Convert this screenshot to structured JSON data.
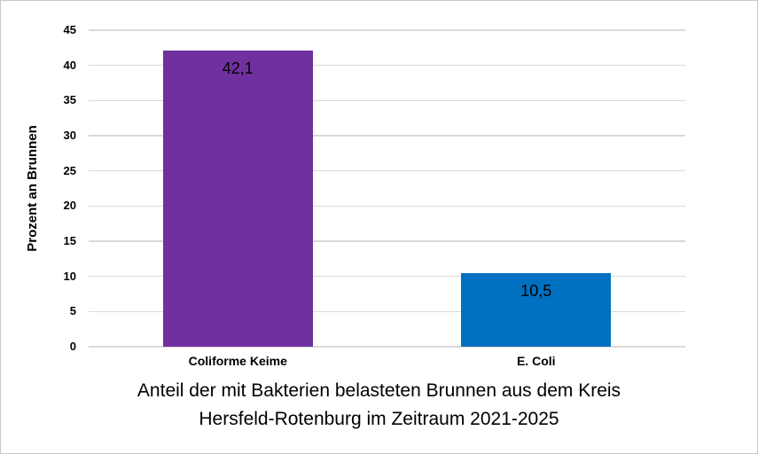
{
  "chart_data": {
    "type": "bar",
    "title_lines": [
      "Anteil der mit Bakterien belasteten Brunnen aus dem Kreis",
      "Hersfeld-Rotenburg im Zeitraum 2021-2025"
    ],
    "ylabel": "Prozent an Brunnen",
    "xlabel": "",
    "categories": [
      "Coliforme Keime",
      "E. Coli"
    ],
    "values": [
      42.1,
      10.5
    ],
    "value_labels": [
      "42,1",
      "10,5"
    ],
    "bar_colors": [
      "#7030A0",
      "#0070C0"
    ],
    "ylim": [
      0,
      45
    ],
    "yticks": [
      0,
      5,
      10,
      15,
      20,
      25,
      30,
      35,
      40,
      45
    ],
    "grid": true,
    "legend_position": "none",
    "gridline_color": "#D9D9D9",
    "background": "#FFFFFF",
    "text_color": "#000000"
  }
}
